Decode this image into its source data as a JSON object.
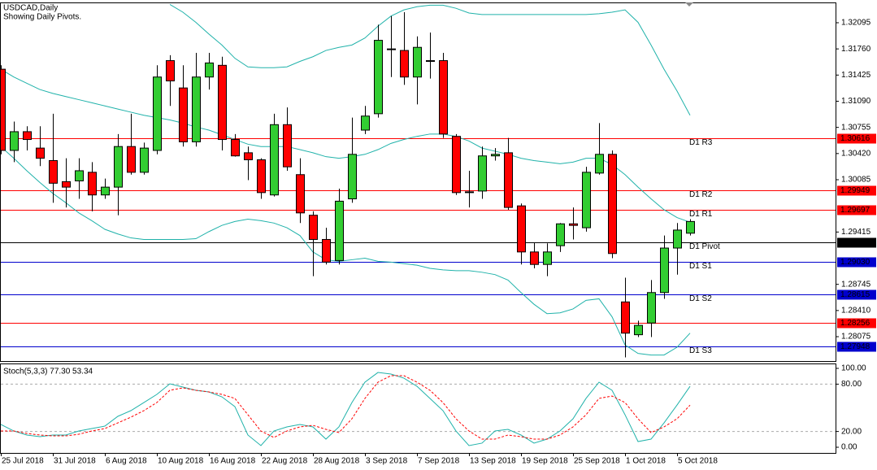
{
  "chart_data": [
    {
      "type": "candlestick",
      "title": "USDCAD,Daily",
      "subtitle": "Showing Daily Pivots.",
      "categories": [
        "25 Jul 2018",
        null,
        null,
        null,
        "31 Jul 2018",
        null,
        null,
        null,
        "6 Aug 2018",
        null,
        null,
        null,
        "10 Aug 2018",
        null,
        null,
        null,
        "16 Aug 2018",
        null,
        null,
        null,
        "22 Aug 2018",
        null,
        null,
        null,
        "28 Aug 2018",
        null,
        null,
        null,
        "3 Sep 2018",
        null,
        null,
        null,
        "7 Sep 2018",
        null,
        null,
        null,
        "13 Sep 2018",
        null,
        null,
        null,
        "19 Sep 2018",
        null,
        null,
        null,
        "25 Sep 2018",
        null,
        null,
        null,
        "1 Oct 2018",
        null,
        null,
        null,
        "5 Oct 2018",
        null
      ],
      "open": [
        1.315,
        1.3046,
        1.307,
        1.3049,
        1.3033,
        1.3006,
        1.3007,
        1.3018,
        1.2989,
        1.2999,
        1.3051,
        1.3018,
        1.3046,
        1.3161,
        1.3126,
        1.3057,
        1.314,
        1.3155,
        1.306,
        1.3043,
        1.3034,
        1.2989,
        1.3079,
        1.3015,
        1.2963,
        1.2932,
        1.2905,
        1.2984,
        1.3072,
        1.3093,
        1.3176,
        1.3174,
        1.314,
        1.3161,
        1.3161,
        1.3064,
        1.2992,
        1.2994,
        1.3039,
        1.3043,
        1.2975,
        1.2916,
        1.29,
        1.2924,
        1.2952,
        1.2947,
        1.3017,
        1.3041,
        1.2852,
        1.281,
        1.2825,
        1.2864,
        1.2921,
        1.294
      ],
      "high": [
        1.3155,
        1.3083,
        1.3077,
        1.3077,
        1.3093,
        1.3036,
        1.3036,
        1.3031,
        1.301,
        1.3067,
        1.3093,
        1.3056,
        1.3155,
        1.3168,
        1.3155,
        1.3171,
        1.3171,
        1.3166,
        1.3067,
        1.3051,
        1.3036,
        1.3093,
        1.3101,
        1.3036,
        1.2968,
        1.2947,
        1.2997,
        1.3088,
        1.3103,
        1.3207,
        1.3218,
        1.3223,
        1.3192,
        1.3197,
        1.3171,
        1.3067,
        1.302,
        1.3051,
        1.3049,
        1.3062,
        1.2978,
        1.2928,
        1.2927,
        1.2953,
        1.2973,
        1.3025,
        1.3081,
        1.3046,
        1.2883,
        1.2828,
        1.288,
        1.2937,
        1.2953,
        1.2958
      ],
      "low": [
        1.3041,
        1.3031,
        1.3046,
        1.3026,
        1.2979,
        1.2973,
        1.2984,
        1.2968,
        1.2984,
        1.2963,
        1.3015,
        1.3015,
        1.3041,
        1.3103,
        1.3051,
        1.3051,
        1.3124,
        1.3046,
        1.3038,
        1.3008,
        1.2984,
        1.2987,
        1.302,
        1.2953,
        1.2885,
        1.29,
        1.29,
        1.2979,
        1.3067,
        1.3088,
        1.314,
        1.313,
        1.3105,
        1.3138,
        1.3062,
        1.2989,
        1.2973,
        1.2984,
        1.3033,
        1.297,
        1.29,
        1.2895,
        1.2885,
        1.2916,
        1.2932,
        1.2942,
        1.3015,
        1.2908,
        1.2781,
        1.2807,
        1.2807,
        1.2856,
        1.2887,
        1.2937
      ],
      "close": [
        1.3046,
        1.307,
        1.306,
        1.3036,
        1.3004,
        1.2999,
        1.302,
        1.2989,
        1.2999,
        1.3051,
        1.3018,
        1.3049,
        1.314,
        1.3135,
        1.3057,
        1.314,
        1.3158,
        1.306,
        1.3039,
        1.3034,
        1.2992,
        1.3079,
        1.3025,
        1.2966,
        1.2932,
        1.2903,
        1.2981,
        1.3041,
        1.309,
        1.3187,
        1.3175,
        1.314,
        1.3178,
        1.316,
        1.3067,
        1.2992,
        1.2993,
        1.3039,
        1.3041,
        1.2973,
        1.2916,
        1.29,
        1.2916,
        1.2952,
        1.295,
        1.3018,
        1.3041,
        1.2914,
        1.2812,
        1.2822,
        1.2864,
        1.2921,
        1.2944,
        1.2955
      ],
      "up_color": "#32cd32",
      "down_color": "#ff0000",
      "series": [
        {
          "color": "#20b2aa",
          "values": [
            null,
            null,
            null,
            null,
            null,
            null,
            null,
            null,
            null,
            null,
            null,
            null,
            null,
            1.3233,
            1.3223,
            1.321,
            1.3195,
            1.3181,
            1.3164,
            1.3153,
            1.3152,
            1.3152,
            1.3153,
            1.316,
            1.3166,
            1.3174,
            1.3178,
            1.3181,
            1.319,
            1.3205,
            1.3218,
            1.3226,
            1.323,
            1.3232,
            1.3232,
            1.3228,
            1.3222,
            1.322,
            1.322,
            1.322,
            1.322,
            1.322,
            1.322,
            1.322,
            1.322,
            1.322,
            1.3221,
            1.3223,
            1.3226,
            1.321,
            1.3181,
            1.315,
            1.3122,
            1.3091
          ]
        },
        {
          "color": "#20b2aa",
          "values": [
            1.315,
            1.314,
            1.3132,
            1.3124,
            1.3119,
            1.3115,
            1.3111,
            1.3107,
            1.3103,
            1.3099,
            1.3095,
            1.3091,
            1.3088,
            1.3085,
            1.3081,
            1.3076,
            1.3072,
            1.3066,
            1.306,
            1.3054,
            1.3051,
            1.3051,
            1.3051,
            1.3047,
            1.3043,
            1.3038,
            1.3036,
            1.3038,
            1.3041,
            1.3047,
            1.3055,
            1.306,
            1.3064,
            1.3067,
            1.3067,
            1.3064,
            1.3058,
            1.3049,
            1.3045,
            1.3041,
            1.3036,
            1.3033,
            1.3031,
            1.3029,
            1.3031,
            1.3036,
            1.3036,
            1.3028,
            1.3015,
            1.2999,
            1.2984,
            1.297,
            1.296,
            1.2954
          ]
        },
        {
          "color": "#20b2aa",
          "values": [
            1.3051,
            1.3036,
            1.302,
            1.3005,
            1.2991,
            1.2979,
            1.2966,
            1.2956,
            1.2945,
            1.2939,
            1.2934,
            1.2932,
            1.2932,
            1.2932,
            1.2932,
            1.2933,
            1.2942,
            1.295,
            1.2955,
            1.2958,
            1.2956,
            1.2953,
            1.2947,
            1.2937,
            1.2916,
            1.2906,
            1.2904,
            1.2906,
            1.2908,
            1.2904,
            1.2903,
            1.2901,
            1.2899,
            1.2895,
            1.2893,
            1.2892,
            1.2892,
            1.289,
            1.2887,
            1.288,
            1.2864,
            1.2849,
            1.2837,
            1.2838,
            1.2843,
            1.2854,
            1.2856,
            1.2833,
            1.2797,
            1.2786,
            1.2784,
            1.2784,
            1.2794,
            1.2812
          ]
        }
      ],
      "levels": [
        {
          "name": "D1 R3",
          "value": 1.30616,
          "color": "#ff0000"
        },
        {
          "name": "D1 R2",
          "value": 1.29949,
          "color": "#ff0000"
        },
        {
          "name": "D1 R1",
          "value": 1.29697,
          "color": "#ff0000"
        },
        {
          "name": "D1 Pivot",
          "value": 1.29282,
          "color": "#000000"
        },
        {
          "name": "D1 S1",
          "value": 1.2903,
          "value_label": "1.29030",
          "color": "#0000cd"
        },
        {
          "name": "D1 S2",
          "value": 1.28615,
          "color": "#0000cd"
        },
        {
          "name": "D1 S3",
          "value": 1.27948,
          "color": "#0000cd"
        },
        {
          "value": 1.28256,
          "color": "#ff0000"
        }
      ],
      "ylim": [
        1.27763,
        1.32355
      ],
      "yticks": [
        1.32095,
        {
          "value": 1.3176,
          "label": "1.31760"
        },
        1.31425,
        {
          "value": 1.3109,
          "label": "1.31090"
        },
        1.30755,
        {
          "value": 1.3042,
          "label": "1.30420"
        },
        1.30085,
        1.29415,
        1.28745,
        {
          "value": 1.2841,
          "label": "1.28410"
        },
        1.28075
      ]
    },
    {
      "type": "line",
      "title": "Stoch(5,3,3) 77.30 53.34",
      "series": [
        {
          "color": "#20b2aa",
          "values": [
            28.9,
            20.6,
            15.5,
            13.4,
            15.5,
            15.5,
            20.6,
            23.7,
            26.8,
            39.2,
            46.4,
            56.7,
            67,
            80.4,
            76.3,
            72.2,
            70.1,
            63.9,
            51.5,
            15.5,
            2.1,
            20.6,
            25.8,
            28.9,
            25.8,
            10.3,
            25.8,
            56.7,
            82.5,
            94.8,
            92.8,
            87.6,
            77.3,
            61.9,
            46.4,
            20.6,
            2.1,
            5.2,
            20.6,
            22.7,
            15.5,
            5.2,
            10.3,
            20.6,
            36.1,
            61.9,
            82.5,
            72.2,
            41.2,
            7.2,
            10.3,
            30.9,
            53.6,
            77.3
          ]
        },
        {
          "color": "#ff0000",
          "dashed": true,
          "values": [
            20.6,
            20.6,
            17.5,
            15.5,
            14.4,
            14.4,
            16.5,
            20.6,
            23.7,
            30.9,
            38.1,
            46.4,
            56.7,
            72.2,
            75.3,
            72.2,
            70.1,
            67,
            61.9,
            41.2,
            20.6,
            12.4,
            20.6,
            25.8,
            27.8,
            22.7,
            18.6,
            36.1,
            61.9,
            82.5,
            90.7,
            90.7,
            82.5,
            72.2,
            56.7,
            36.1,
            20.6,
            10.3,
            10.3,
            15.5,
            13.4,
            10.3,
            10.3,
            15.5,
            25.8,
            41.2,
            61.9,
            64.9,
            56.7,
            36.1,
            18.6,
            25.8,
            36.1,
            53.34
          ]
        }
      ],
      "levels": [
        80,
        20
      ],
      "ylim": [
        -7.2,
        106.2
      ],
      "yticks": [
        {
          "value": 100,
          "label": "100.00"
        },
        {
          "value": 80,
          "label": "80.00"
        },
        {
          "value": 20,
          "label": "20.00"
        },
        {
          "value": 0,
          "label": "0.00"
        }
      ]
    }
  ]
}
